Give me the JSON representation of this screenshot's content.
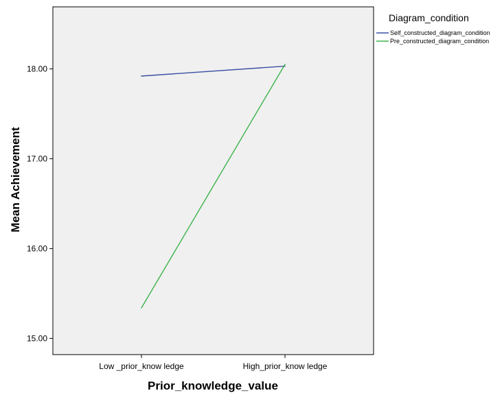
{
  "chart_data": {
    "type": "line",
    "categories": [
      "Low _prior_know ledge",
      "High_prior_know ledge"
    ],
    "series": [
      {
        "name": "Self_constructed_diagram_condition",
        "color": "#3b4fa3",
        "values": [
          17.92,
          18.03
        ]
      },
      {
        "name": "Pre_constructed_diagram_condition",
        "color": "#3bb34a",
        "values": [
          15.34,
          18.05
        ]
      }
    ],
    "xlabel": "Prior_knowledge_value",
    "ylabel": "Mean Achievement",
    "ylim": [
      14.82,
      18.69
    ],
    "yticks": [
      15.0,
      16.0,
      17.0,
      18.0
    ],
    "ytick_labels": [
      "15.00",
      "16.00",
      "17.00",
      "18.00"
    ],
    "legend_title": "Diagram_condition",
    "legend_position": "right",
    "grid": false,
    "plot_background": "#f0f0f0"
  }
}
